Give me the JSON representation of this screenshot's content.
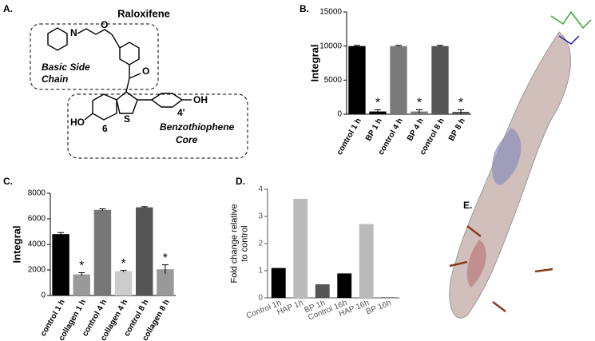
{
  "panel_labels": [
    "A.",
    "B.",
    "C.",
    "D.",
    "E."
  ],
  "structure": {
    "title": "Raloxifene",
    "side_chain": [
      "Basic Side",
      "Chain"
    ],
    "core": [
      "Benzothiophene",
      "Core"
    ],
    "atoms": {
      "n": "N",
      "o_ether": "O",
      "o_keto": "O",
      "s": "S",
      "ho": "HO",
      "oh": "OH",
      "pos6": "6",
      "pos4": "4'"
    }
  },
  "chart_data": [
    {
      "type": "bar",
      "ylabel": [
        "Integral"
      ],
      "categories": [
        "control 1 h",
        "BP 1 h",
        "control 4 h",
        "BP 4 h",
        "control 8 h",
        "BP 8 h"
      ],
      "values": [
        10000,
        400,
        10000,
        400,
        10000,
        350
      ],
      "errors": [
        100,
        250,
        100,
        250,
        100,
        300
      ],
      "colors": [
        "#000000",
        "#000000",
        "#7a7a7a",
        "#7a7a7a",
        "#555555",
        "#555555"
      ],
      "significance": [
        null,
        "*",
        null,
        "*",
        null,
        "*"
      ],
      "ylim": [
        0,
        15000
      ],
      "yticks": [
        0,
        5000,
        10000,
        15000
      ]
    },
    {
      "type": "bar",
      "ylabel": [
        "Integral"
      ],
      "categories": [
        "control 1 h",
        "collagen 1 h",
        "control 4 h",
        "collagen 4 h",
        "control 8 h",
        "collagen 8 h"
      ],
      "values": [
        4800,
        1650,
        6700,
        1900,
        6900,
        2050
      ],
      "errors": [
        120,
        130,
        80,
        60,
        50,
        350
      ],
      "colors": [
        "#000000",
        "#999999",
        "#777777",
        "#cccccc",
        "#555555",
        "#999999"
      ],
      "significance": [
        null,
        "*",
        null,
        "*",
        null,
        "*"
      ],
      "ylim": [
        0,
        8000
      ],
      "yticks": [
        0,
        2000,
        4000,
        6000,
        8000
      ]
    },
    {
      "type": "bar",
      "ylabel": [
        "Fold change relative",
        "to control"
      ],
      "categories": [
        "Control 1h",
        "HAP 1h",
        "BP 1h",
        "Control 16h",
        "HAP 16h",
        "BP 16h"
      ],
      "values": [
        1.1,
        3.65,
        0.5,
        0.9,
        2.72,
        0.02
      ],
      "colors": [
        "#000000",
        "#bbbbbb",
        "#555555",
        "#000000",
        "#bbbbbb",
        "#555555"
      ],
      "ylim": [
        0,
        4
      ],
      "yticks": [
        0,
        1,
        2,
        3,
        4
      ]
    }
  ]
}
